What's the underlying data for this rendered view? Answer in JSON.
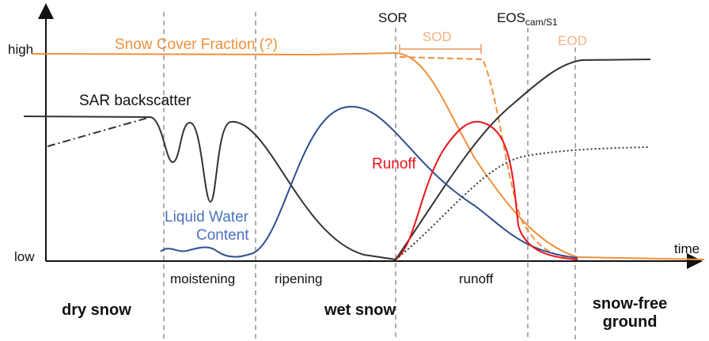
{
  "axes": {
    "y_high": "high",
    "y_low": "low",
    "x_label": "time"
  },
  "curves": {
    "snow_cover": "Snow Cover Fraction (?)",
    "sar": "SAR backscatter",
    "lwc": [
      "Liquid Water",
      "Content"
    ],
    "runoff": "Runoff"
  },
  "markers": {
    "sor": "SOR",
    "sod": "SOD",
    "eos": "EOS",
    "eos_sub": "cam/S1",
    "eod": "EOD"
  },
  "phases": [
    "moistening",
    "ripening",
    "runoff"
  ],
  "states": {
    "dry": "dry snow",
    "wet": "wet snow",
    "free": [
      "snow-free",
      "ground"
    ]
  }
}
